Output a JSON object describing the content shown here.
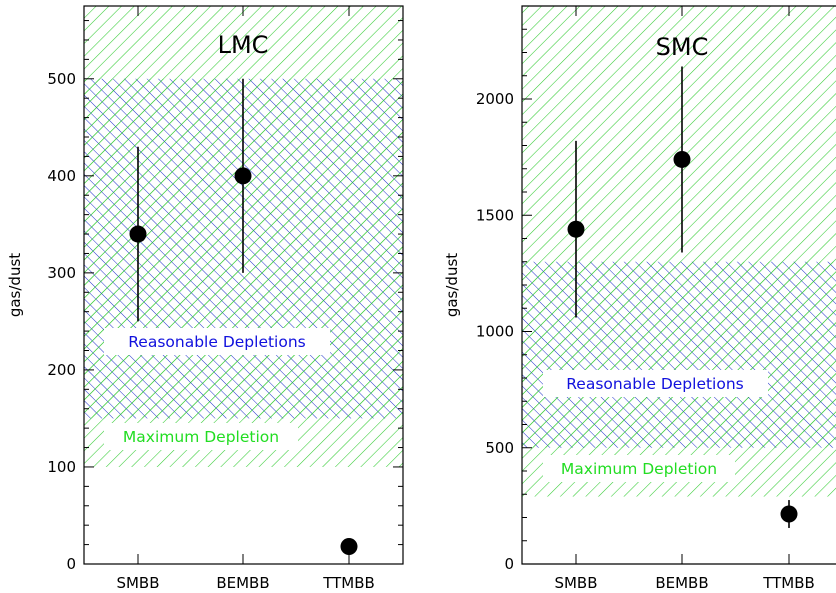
{
  "chart_data": [
    {
      "type": "scatter",
      "title": "LMC",
      "ylabel": "gas/dust",
      "xlabel": "",
      "categories": [
        "SMBB",
        "BEMBB",
        "TTMBB"
      ],
      "ylim": [
        0,
        575
      ],
      "yticks": [
        0,
        100,
        200,
        300,
        400,
        500
      ],
      "points": [
        {
          "category": "SMBB",
          "value": 340,
          "err_low": 250,
          "err_high": 430
        },
        {
          "category": "BEMBB",
          "value": 400,
          "err_low": 300,
          "err_high": 500
        },
        {
          "category": "TTMBB",
          "value": 18,
          "err_low": 18,
          "err_high": 18
        }
      ],
      "regions": [
        {
          "label": "Maximum Depletion",
          "ymin": 100,
          "ymax": 575,
          "color": "#33cc33",
          "pattern": "diagonal"
        },
        {
          "label": "Reasonable Depletions",
          "ymin": 150,
          "ymax": 500,
          "color": "#2233cc",
          "pattern": "crosshatch"
        }
      ]
    },
    {
      "type": "scatter",
      "title": "SMC",
      "ylabel": "gas/dust",
      "xlabel": "",
      "categories": [
        "SMBB",
        "BEMBB",
        "TTMBB"
      ],
      "ylim": [
        0,
        2400
      ],
      "yticks": [
        0,
        500,
        1000,
        1500,
        2000
      ],
      "points": [
        {
          "category": "SMBB",
          "value": 1440,
          "err_low": 1060,
          "err_high": 1820
        },
        {
          "category": "BEMBB",
          "value": 1740,
          "err_low": 1340,
          "err_high": 2140
        },
        {
          "category": "TTMBB",
          "value": 215,
          "err_low": 155,
          "err_high": 275
        }
      ],
      "regions": [
        {
          "label": "Maximum Depletion",
          "ymin": 290,
          "ymax": 2400,
          "color": "#33cc33",
          "pattern": "diagonal"
        },
        {
          "label": "Reasonable Depletions",
          "ymin": 500,
          "ymax": 1300,
          "color": "#2233cc",
          "pattern": "crosshatch"
        }
      ]
    }
  ],
  "colors": {
    "green_hatch": "#33cc33",
    "blue_hatch": "#2233cc",
    "green_text": "#22dd22",
    "blue_text": "#1111dd"
  }
}
